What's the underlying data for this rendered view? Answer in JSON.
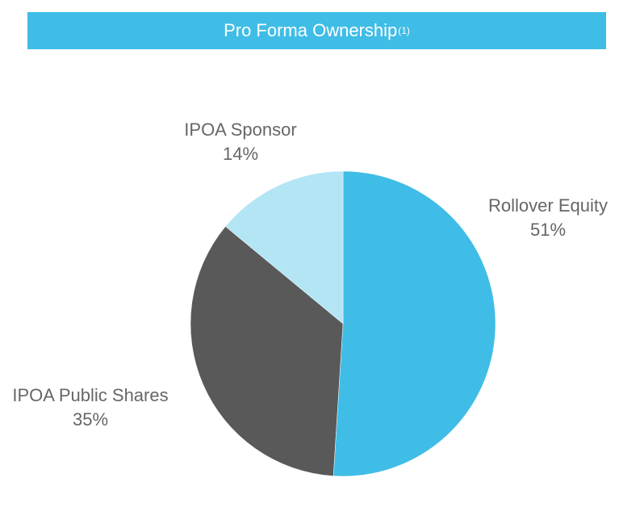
{
  "title": {
    "text": "Pro Forma Ownership",
    "footnote": "(1)"
  },
  "colors": {
    "title_bg": "#3FBDE6",
    "title_text": "#FFFFFF",
    "label_text": "#666666"
  },
  "chart_data": {
    "type": "pie",
    "title": "Pro Forma Ownership(1)",
    "slices": [
      {
        "label": "Rollover Equity",
        "value": 51,
        "display": "51%",
        "color": "#3FBDE6"
      },
      {
        "label": "IPOA Public Shares",
        "value": 35,
        "display": "35%",
        "color": "#595959"
      },
      {
        "label": "IPOA Sponsor",
        "value": 14,
        "display": "14%",
        "color": "#B3E5F5"
      }
    ],
    "start": "12 o'clock",
    "direction": "clockwise"
  }
}
